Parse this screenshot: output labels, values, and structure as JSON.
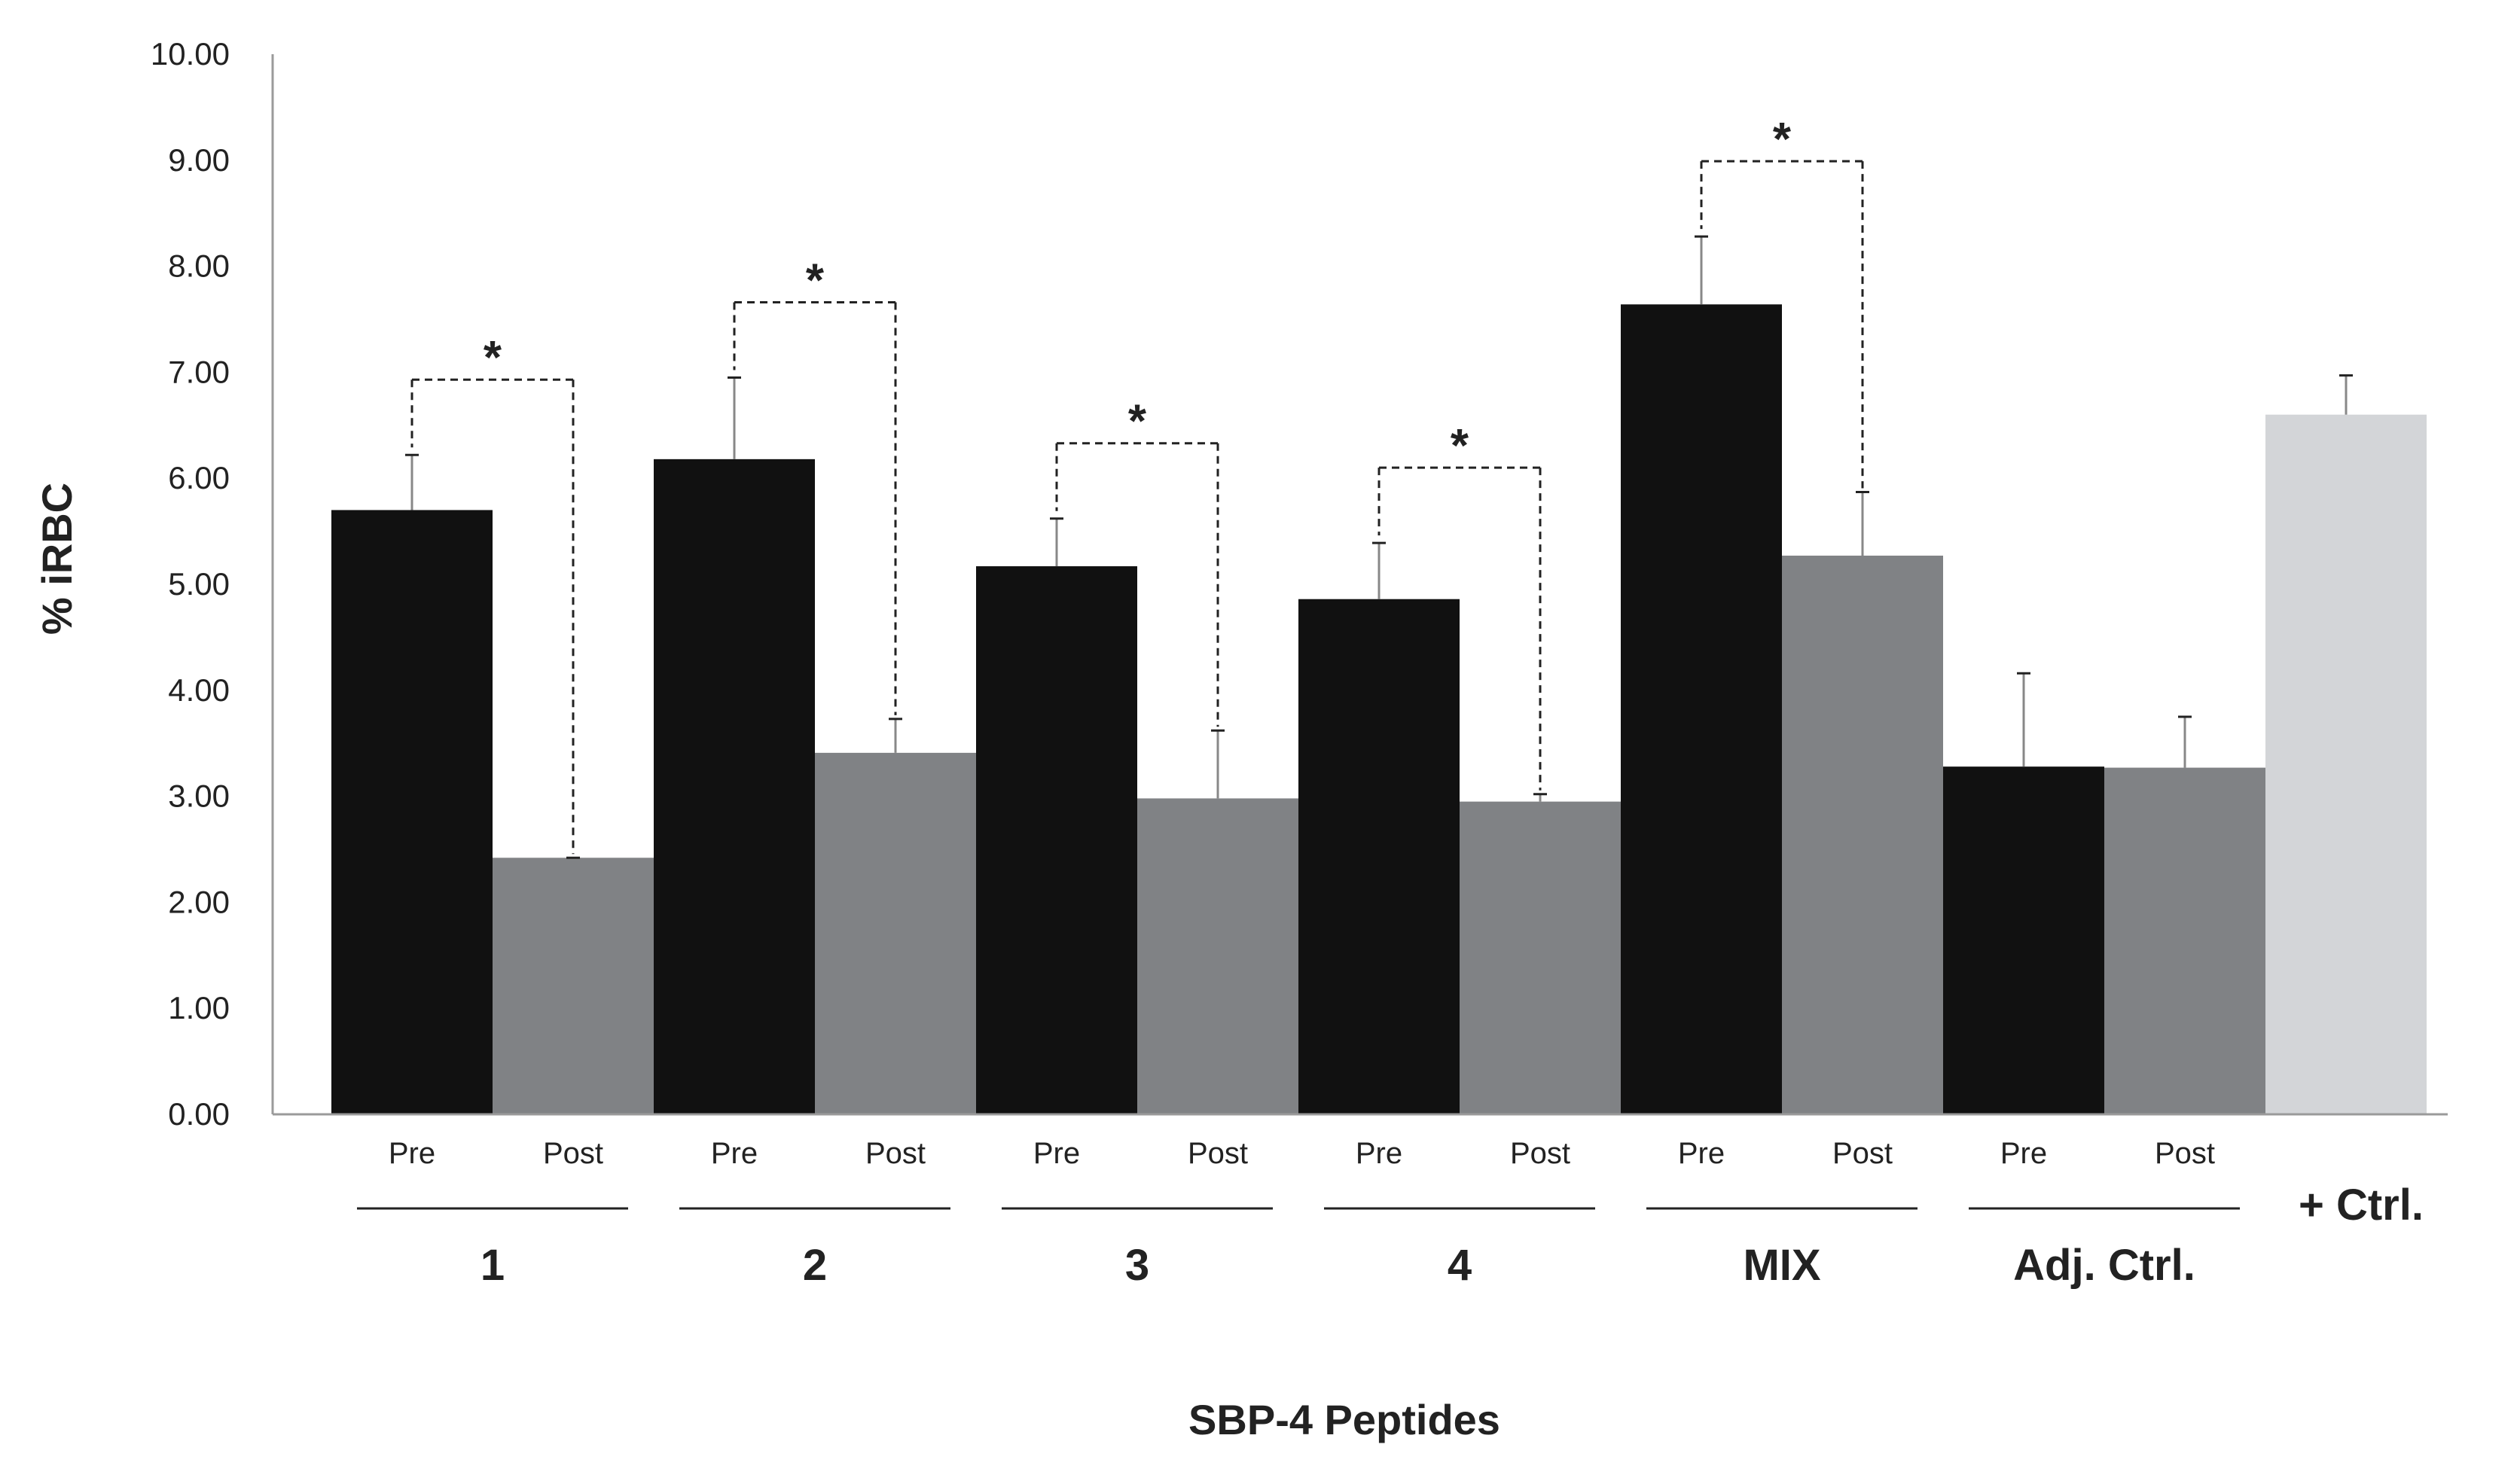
{
  "chart_data": {
    "type": "bar",
    "title": "",
    "xlabel": "SBP-4 Peptides",
    "ylabel": "% iRBC",
    "ylim": [
      0,
      10
    ],
    "yticks": [
      "0.00",
      "1.00",
      "2.00",
      "3.00",
      "4.00",
      "5.00",
      "6.00",
      "7.00",
      "8.00",
      "9.00",
      "10.00"
    ],
    "groups": [
      {
        "label": "1",
        "bars": [
          {
            "sub": "Pre",
            "value": 5.7,
            "err": 0.52,
            "color": "#111111"
          },
          {
            "sub": "Post",
            "value": 2.42,
            "err": 0.0,
            "color": "#808285"
          }
        ],
        "significance": "*"
      },
      {
        "label": "2",
        "bars": [
          {
            "sub": "Pre",
            "value": 6.18,
            "err": 0.77,
            "color": "#111111"
          },
          {
            "sub": "Post",
            "value": 3.41,
            "err": 0.32,
            "color": "#808285"
          }
        ],
        "significance": "*"
      },
      {
        "label": "3",
        "bars": [
          {
            "sub": "Pre",
            "value": 5.17,
            "err": 0.45,
            "color": "#111111"
          },
          {
            "sub": "Post",
            "value": 2.98,
            "err": 0.64,
            "color": "#808285"
          }
        ],
        "significance": "*"
      },
      {
        "label": "4",
        "bars": [
          {
            "sub": "Pre",
            "value": 4.86,
            "err": 0.53,
            "color": "#111111"
          },
          {
            "sub": "Post",
            "value": 2.95,
            "err": 0.07,
            "color": "#808285"
          }
        ],
        "significance": "*"
      },
      {
        "label": "MIX",
        "bars": [
          {
            "sub": "Pre",
            "value": 7.64,
            "err": 0.64,
            "color": "#111111"
          },
          {
            "sub": "Post",
            "value": 5.27,
            "err": 0.6,
            "color": "#808285"
          }
        ],
        "significance": "*"
      },
      {
        "label": "Adj. Ctrl.",
        "bars": [
          {
            "sub": "Pre",
            "value": 3.28,
            "err": 0.88,
            "color": "#111111"
          },
          {
            "sub": "Post",
            "value": 3.27,
            "err": 0.48,
            "color": "#808285"
          }
        ],
        "significance": ""
      }
    ],
    "control": {
      "label": "+ Ctrl.",
      "value": 6.6,
      "err": 0.37,
      "color": "#d3d5d8"
    }
  }
}
